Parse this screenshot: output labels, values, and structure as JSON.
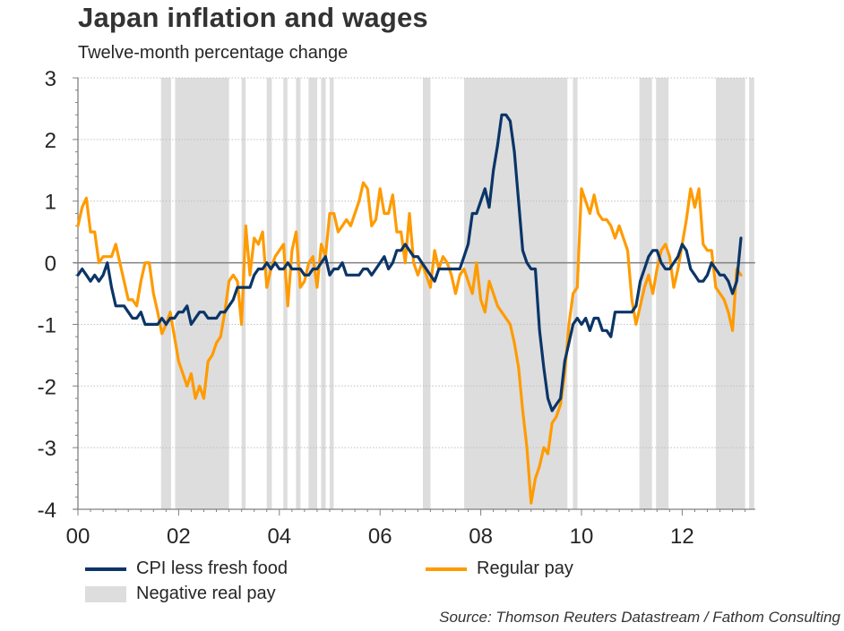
{
  "title": "Japan inflation and wages",
  "subtitle": "Twelve-month percentage change",
  "source": "Source: Thomson Reuters Datastream / Fathom Consulting",
  "colors": {
    "cpi": "#0b3567",
    "pay": "#ff9b00",
    "shade": "#dddddd",
    "zero_line": "#808080",
    "grid": "#bfbfbf"
  },
  "legend": [
    {
      "label": "CPI less fresh food",
      "kind": "line",
      "series": "cpi"
    },
    {
      "label": "Regular pay",
      "kind": "line",
      "series": "pay"
    },
    {
      "label": "Negative real pay",
      "kind": "box",
      "series": "shade"
    }
  ],
  "chart_data": {
    "type": "line",
    "title": "Japan inflation and wages",
    "subtitle": "Twelve-month percentage change",
    "xlabel": "",
    "ylabel": "",
    "x_start": "2000-01",
    "x_frequency": "monthly",
    "xlim_years": [
      2000,
      2013.45
    ],
    "ylim": [
      -4,
      3
    ],
    "yticks": [
      3,
      2,
      1,
      0,
      -1,
      -2,
      -3,
      -4
    ],
    "xticks": [
      {
        "year": 2000,
        "label": "00"
      },
      {
        "year": 2002,
        "label": "02"
      },
      {
        "year": 2004,
        "label": "04"
      },
      {
        "year": 2006,
        "label": "06"
      },
      {
        "year": 2008,
        "label": "08"
      },
      {
        "year": 2010,
        "label": "10"
      },
      {
        "year": 2012,
        "label": "12"
      }
    ],
    "grid": "horizontal dotted",
    "legend_position": "bottom",
    "shaded_periods": {
      "name": "Negative real pay",
      "ranges_years": [
        [
          2001.65,
          2001.85
        ],
        [
          2001.93,
          2003.0
        ],
        [
          2003.25,
          2003.33
        ],
        [
          2003.75,
          2003.85
        ],
        [
          2004.08,
          2004.16
        ],
        [
          2004.33,
          2004.42
        ],
        [
          2004.58,
          2004.75
        ],
        [
          2004.83,
          2004.92
        ],
        [
          2005.0,
          2005.08
        ],
        [
          2006.85,
          2007.0
        ],
        [
          2007.67,
          2009.72
        ],
        [
          2009.83,
          2009.92
        ],
        [
          2011.15,
          2011.4
        ],
        [
          2011.48,
          2011.73
        ],
        [
          2012.67,
          2013.25
        ],
        [
          2013.33,
          2013.43
        ]
      ]
    },
    "series": [
      {
        "name": "CPI less fresh food",
        "values": [
          -0.2,
          -0.1,
          -0.2,
          -0.3,
          -0.2,
          -0.3,
          -0.2,
          0.0,
          -0.4,
          -0.7,
          -0.7,
          -0.7,
          -0.8,
          -0.9,
          -0.9,
          -0.8,
          -1.0,
          -1.0,
          -1.0,
          -1.0,
          -0.9,
          -1.0,
          -0.9,
          -0.9,
          -0.8,
          -0.8,
          -0.7,
          -1.0,
          -0.9,
          -0.8,
          -0.8,
          -0.9,
          -0.9,
          -0.9,
          -0.8,
          -0.8,
          -0.7,
          -0.6,
          -0.4,
          -0.4,
          -0.4,
          -0.4,
          -0.2,
          -0.1,
          -0.1,
          0.0,
          -0.1,
          0.0,
          -0.1,
          -0.1,
          0.0,
          -0.1,
          -0.1,
          -0.1,
          -0.2,
          -0.2,
          -0.1,
          -0.1,
          0.0,
          0.1,
          -0.2,
          -0.1,
          -0.1,
          0.0,
          -0.2,
          -0.2,
          -0.2,
          -0.2,
          -0.1,
          -0.1,
          -0.2,
          -0.1,
          0.0,
          0.1,
          -0.1,
          0.0,
          0.2,
          0.2,
          0.3,
          0.2,
          0.1,
          0.1,
          0.0,
          -0.1,
          -0.2,
          -0.3,
          -0.1,
          -0.1,
          -0.1,
          -0.1,
          -0.1,
          -0.1,
          0.1,
          0.3,
          0.8,
          0.8,
          1.0,
          1.2,
          0.9,
          1.5,
          1.9,
          2.4,
          2.4,
          2.3,
          1.8,
          1.0,
          0.2,
          0.0,
          -0.1,
          -0.1,
          -1.1,
          -1.7,
          -2.2,
          -2.4,
          -2.3,
          -2.2,
          -1.6,
          -1.3,
          -1.0,
          -0.9,
          -1.0,
          -0.9,
          -1.1,
          -0.9,
          -0.9,
          -1.1,
          -1.1,
          -1.2,
          -0.8,
          -0.8,
          -0.8,
          -0.8,
          -0.8,
          -0.7,
          -0.3,
          -0.1,
          0.1,
          0.2,
          0.2,
          0.0,
          -0.1,
          -0.1,
          0.0,
          0.1,
          0.3,
          0.2,
          -0.1,
          -0.2,
          -0.3,
          -0.3,
          -0.2,
          0.0,
          -0.1,
          -0.2,
          -0.2,
          -0.3,
          -0.5,
          -0.3,
          0.4
        ]
      },
      {
        "name": "Regular pay",
        "values": [
          0.6,
          0.9,
          1.05,
          0.5,
          0.5,
          0.0,
          0.1,
          0.1,
          0.1,
          0.3,
          0.0,
          -0.3,
          -0.6,
          -0.6,
          -0.7,
          -0.3,
          0.0,
          0.0,
          -0.5,
          -0.8,
          -1.15,
          -1.0,
          -0.8,
          -1.2,
          -1.6,
          -1.8,
          -2.0,
          -1.8,
          -2.2,
          -2.0,
          -2.2,
          -1.6,
          -1.5,
          -1.3,
          -1.2,
          -0.8,
          -0.3,
          -0.2,
          -0.3,
          -1.0,
          0.6,
          -0.2,
          0.4,
          0.3,
          0.5,
          -0.4,
          -0.1,
          0.1,
          0.2,
          0.3,
          -0.7,
          0.2,
          0.5,
          -0.4,
          -0.3,
          0.0,
          0.1,
          -0.4,
          0.3,
          0.1,
          0.8,
          0.8,
          0.5,
          0.6,
          0.7,
          0.6,
          0.8,
          1.0,
          1.3,
          1.2,
          0.6,
          0.7,
          1.2,
          0.8,
          0.8,
          1.1,
          0.5,
          0.5,
          0.0,
          0.8,
          0.0,
          -0.2,
          0.0,
          -0.2,
          -0.4,
          0.2,
          -0.1,
          0.1,
          0.0,
          -0.2,
          -0.5,
          -0.2,
          -0.1,
          -0.3,
          -0.5,
          0.0,
          -0.6,
          -0.8,
          -0.3,
          -0.5,
          -0.7,
          -0.8,
          -0.9,
          -1.0,
          -1.3,
          -1.7,
          -2.4,
          -3.0,
          -3.9,
          -3.5,
          -3.3,
          -3.0,
          -3.1,
          -2.6,
          -2.5,
          -2.3,
          -1.8,
          -1.0,
          -0.5,
          -0.4,
          1.2,
          1.0,
          0.8,
          1.1,
          0.8,
          0.7,
          0.7,
          0.6,
          0.4,
          0.6,
          0.4,
          0.2,
          -0.6,
          -1.0,
          -0.7,
          -0.4,
          -0.2,
          -0.5,
          -0.1,
          0.2,
          0.3,
          0.1,
          -0.4,
          -0.1,
          0.3,
          0.7,
          1.2,
          0.9,
          1.2,
          0.3,
          0.2,
          0.2,
          -0.4,
          -0.5,
          -0.6,
          -0.8,
          -1.1,
          -0.1,
          -0.2
        ]
      }
    ]
  }
}
